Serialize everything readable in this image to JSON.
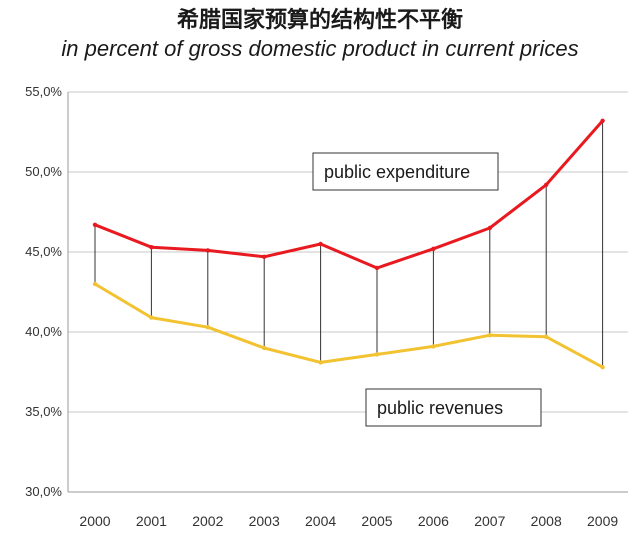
{
  "title": "希腊国家预算的结构性不平衡",
  "subtitle": "in percent of gross domestic product in current prices",
  "chart_data": {
    "type": "line",
    "categories": [
      "2000",
      "2001",
      "2002",
      "2003",
      "2004",
      "2005",
      "2006",
      "2007",
      "2008",
      "2009"
    ],
    "series": [
      {
        "name": "public expenditure",
        "color": "#e8191f",
        "values": [
          46.7,
          45.3,
          45.1,
          44.7,
          45.5,
          44.0,
          45.2,
          46.5,
          49.2,
          53.2
        ]
      },
      {
        "name": "public revenues",
        "color": "#f2c230",
        "values": [
          43.0,
          40.9,
          40.3,
          39.0,
          38.1,
          38.6,
          39.1,
          39.8,
          39.7,
          37.8
        ]
      }
    ],
    "ylim": [
      30,
      55
    ],
    "yticks": [
      "30,0%",
      "35,0%",
      "40,0%",
      "45,0%",
      "50,0%",
      "55,0%"
    ],
    "grid": true,
    "gap_lines": true,
    "annotations": [
      {
        "text": "public expenditure",
        "series": 0
      },
      {
        "text": "public revenues",
        "series": 1
      }
    ]
  }
}
